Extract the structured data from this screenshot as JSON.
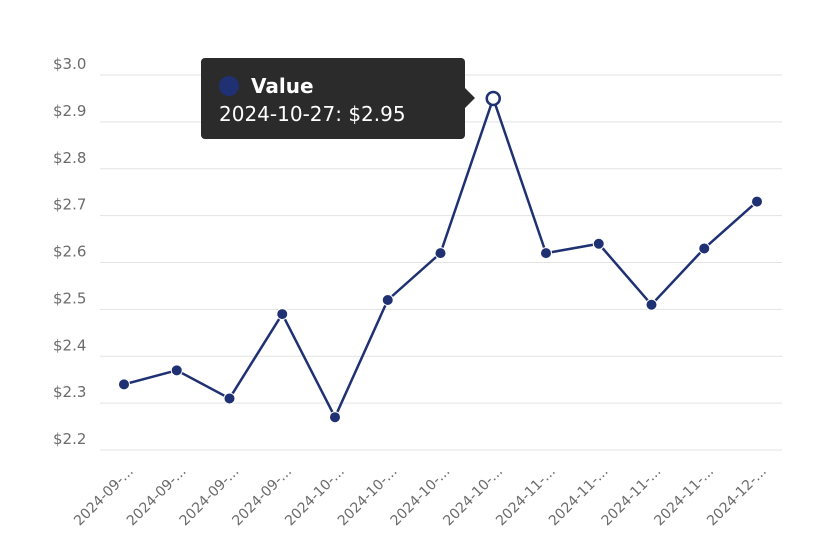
{
  "chart_data": {
    "type": "line",
    "title": "",
    "xlabel": "",
    "ylabel": "",
    "ylim": [
      2.2,
      3.0
    ],
    "yticks": [
      "$3.0",
      "$2.9",
      "$2.8",
      "$2.7",
      "$2.6",
      "$2.5",
      "$2.4",
      "$2.3",
      "$2.2"
    ],
    "categories": [
      "2024-09-...",
      "2024-09-...",
      "2024-09-...",
      "2024-09-...",
      "2024-10-...",
      "2024-10-...",
      "2024-10-...",
      "2024-10-...",
      "2024-11-...",
      "2024-11-...",
      "2024-11-...",
      "2024-11-...",
      "2024-12-..."
    ],
    "series": [
      {
        "name": "Value",
        "values": [
          2.34,
          2.37,
          2.31,
          2.49,
          2.27,
          2.52,
          2.62,
          2.95,
          2.62,
          2.64,
          2.51,
          2.63,
          2.73
        ]
      }
    ],
    "grid": true,
    "line_color": "#1f3173",
    "tooltip": {
      "series_name": "Value",
      "text": "2024-10-27: $2.95",
      "highlighted_index": 7
    }
  }
}
